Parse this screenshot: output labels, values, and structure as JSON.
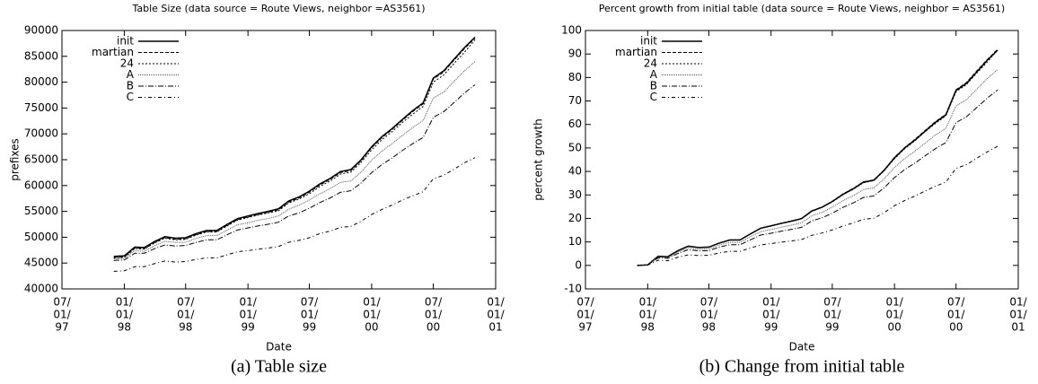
{
  "chart_data": [
    {
      "type": "line",
      "title": "Table Size (data source = Route Views, neighbor =AS3561)",
      "xlabel": "Date",
      "ylabel": "prefixes",
      "caption": "(a) Table size",
      "legend": "upper left",
      "x": [
        "1997-12-01",
        "1998-01-01",
        "1998-02-01",
        "1998-03-01",
        "1998-04-01",
        "1998-05-01",
        "1998-06-01",
        "1998-07-01",
        "1998-08-01",
        "1998-09-01",
        "1998-10-01",
        "1998-11-01",
        "1998-12-01",
        "1999-01-01",
        "1999-02-01",
        "1999-03-01",
        "1999-04-01",
        "1999-05-01",
        "1999-06-01",
        "1999-07-01",
        "1999-08-01",
        "1999-09-01",
        "1999-10-01",
        "1999-11-01",
        "1999-12-01",
        "2000-01-01",
        "2000-02-01",
        "2000-03-01",
        "2000-04-01",
        "2000-05-01",
        "2000-06-01",
        "2000-07-01",
        "2000-08-01",
        "2000-09-01",
        "2000-10-01",
        "2000-11-01"
      ],
      "xlim": [
        "1997-07-01",
        "2001-01-01"
      ],
      "xticks": [
        {
          "value": "1997-07-01",
          "label": [
            "07/",
            "01/",
            "97"
          ]
        },
        {
          "value": "1998-01-01",
          "label": [
            "01/",
            "01/",
            "98"
          ]
        },
        {
          "value": "1998-07-01",
          "label": [
            "07/",
            "01/",
            "98"
          ]
        },
        {
          "value": "1999-01-01",
          "label": [
            "01/",
            "01/",
            "99"
          ]
        },
        {
          "value": "1999-07-01",
          "label": [
            "07/",
            "01/",
            "99"
          ]
        },
        {
          "value": "2000-01-01",
          "label": [
            "01/",
            "01/",
            "00"
          ]
        },
        {
          "value": "2000-07-01",
          "label": [
            "07/",
            "01/",
            "00"
          ]
        },
        {
          "value": "2001-01-01",
          "label": [
            "01/",
            "01/",
            "01"
          ]
        }
      ],
      "ylim": [
        40000,
        90000
      ],
      "yticks": [
        40000,
        45000,
        50000,
        55000,
        60000,
        65000,
        70000,
        75000,
        80000,
        85000,
        90000
      ],
      "series": [
        {
          "name": "init",
          "color": "#000000",
          "dash": "none",
          "values": [
            46300,
            46400,
            48100,
            48000,
            49200,
            50100,
            49800,
            49900,
            50700,
            51300,
            51300,
            52500,
            53600,
            54100,
            54600,
            55000,
            55500,
            57000,
            57800,
            58900,
            60300,
            61400,
            62700,
            63100,
            65000,
            67500,
            69500,
            71000,
            72800,
            74500,
            76000,
            80800,
            82200,
            84500,
            86700,
            88700
          ]
        },
        {
          "name": "martian",
          "color": "#000000",
          "dash": "4,2",
          "values": [
            46100,
            46200,
            47900,
            47800,
            49000,
            49900,
            49600,
            49700,
            50500,
            51100,
            51100,
            52300,
            53400,
            53900,
            54400,
            54800,
            55300,
            56800,
            57600,
            58700,
            60100,
            61200,
            62500,
            62900,
            64800,
            67300,
            69300,
            70800,
            72600,
            74300,
            75800,
            80600,
            82000,
            84300,
            86500,
            88500
          ]
        },
        {
          "name": "24",
          "color": "#000000",
          "dash": "2,2",
          "values": [
            46000,
            46100,
            47800,
            47700,
            48900,
            49800,
            49500,
            49600,
            50400,
            51000,
            51000,
            52200,
            53300,
            53800,
            54300,
            54700,
            55100,
            56600,
            57400,
            58400,
            59800,
            60900,
            62200,
            62600,
            64500,
            66900,
            68900,
            70400,
            72200,
            73800,
            75300,
            80000,
            81400,
            83700,
            85800,
            88200
          ]
        },
        {
          "name": "A",
          "color": "#555555",
          "dash": "1,1",
          "values": [
            45800,
            45900,
            47400,
            47300,
            48400,
            49200,
            49000,
            49000,
            49800,
            50300,
            50300,
            51400,
            52400,
            52800,
            53300,
            53600,
            54100,
            55400,
            56200,
            57200,
            58400,
            59400,
            60600,
            60900,
            62600,
            64900,
            66700,
            68100,
            69700,
            71200,
            72600,
            76900,
            78100,
            80200,
            82200,
            84000
          ]
        },
        {
          "name": "B",
          "color": "#000000",
          "dash": "6,2,1,2",
          "values": [
            45500,
            45600,
            46900,
            46900,
            47800,
            48500,
            48300,
            48400,
            49000,
            49500,
            49500,
            50500,
            51400,
            51800,
            52200,
            52500,
            52900,
            54100,
            54700,
            55600,
            56700,
            57600,
            58700,
            59000,
            60500,
            62500,
            64100,
            65300,
            66800,
            68100,
            69300,
            73200,
            74300,
            76100,
            77900,
            79500
          ]
        },
        {
          "name": "C",
          "color": "#000000",
          "dash": "4,3,1,3",
          "values": [
            43400,
            43500,
            44300,
            44300,
            44900,
            45400,
            45200,
            45300,
            45700,
            46000,
            46000,
            46600,
            47200,
            47400,
            47700,
            47900,
            48200,
            49000,
            49400,
            49900,
            50700,
            51200,
            51900,
            52100,
            53100,
            54400,
            55400,
            56200,
            57200,
            58000,
            58800,
            61300,
            62000,
            63200,
            64400,
            65400
          ]
        }
      ]
    },
    {
      "type": "line",
      "title": "Percent growth from initial table (data source = Route Views, neighbor = AS3561)",
      "xlabel": "Date",
      "ylabel": "percent growth",
      "caption": "(b) Change from initial table",
      "legend": "upper left",
      "x": [
        "1997-12-01",
        "1998-01-01",
        "1998-02-01",
        "1998-03-01",
        "1998-04-01",
        "1998-05-01",
        "1998-06-01",
        "1998-07-01",
        "1998-08-01",
        "1998-09-01",
        "1998-10-01",
        "1998-11-01",
        "1998-12-01",
        "1999-01-01",
        "1999-02-01",
        "1999-03-01",
        "1999-04-01",
        "1999-05-01",
        "1999-06-01",
        "1999-07-01",
        "1999-08-01",
        "1999-09-01",
        "1999-10-01",
        "1999-11-01",
        "1999-12-01",
        "2000-01-01",
        "2000-02-01",
        "2000-03-01",
        "2000-04-01",
        "2000-05-01",
        "2000-06-01",
        "2000-07-01",
        "2000-08-01",
        "2000-09-01",
        "2000-10-01",
        "2000-11-01"
      ],
      "xlim": [
        "1997-07-01",
        "2001-01-01"
      ],
      "xticks": [
        {
          "value": "1997-07-01",
          "label": [
            "07/",
            "01/",
            "97"
          ]
        },
        {
          "value": "1998-01-01",
          "label": [
            "01/",
            "01/",
            "98"
          ]
        },
        {
          "value": "1998-07-01",
          "label": [
            "07/",
            "01/",
            "98"
          ]
        },
        {
          "value": "1999-01-01",
          "label": [
            "01/",
            "01/",
            "99"
          ]
        },
        {
          "value": "1999-07-01",
          "label": [
            "07/",
            "01/",
            "99"
          ]
        },
        {
          "value": "2000-01-01",
          "label": [
            "01/",
            "01/",
            "00"
          ]
        },
        {
          "value": "2000-07-01",
          "label": [
            "07/",
            "01/",
            "00"
          ]
        },
        {
          "value": "2001-01-01",
          "label": [
            "01/",
            "01/",
            "01"
          ]
        }
      ],
      "ylim": [
        -10,
        100
      ],
      "yticks": [
        -10,
        0,
        10,
        20,
        30,
        40,
        50,
        60,
        70,
        80,
        90,
        100
      ],
      "series": [
        {
          "name": "init",
          "color": "#000000",
          "dash": "none",
          "values": [
            0,
            0.2,
            3.9,
            3.7,
            6.3,
            8.2,
            7.6,
            7.8,
            9.5,
            10.8,
            10.8,
            13.4,
            15.8,
            16.8,
            17.9,
            18.8,
            19.9,
            23.1,
            24.8,
            27.2,
            30.2,
            32.6,
            35.4,
            36.3,
            40.4,
            45.8,
            50.1,
            53.3,
            57.2,
            60.9,
            64.1,
            74.5,
            77.5,
            82.5,
            87.3,
            91.6
          ]
        },
        {
          "name": "martian",
          "color": "#000000",
          "dash": "4,2",
          "values": [
            0,
            0.2,
            3.9,
            3.7,
            6.3,
            8.2,
            7.6,
            7.8,
            9.5,
            10.8,
            10.8,
            13.4,
            15.8,
            16.9,
            18.0,
            18.9,
            20.0,
            23.2,
            24.9,
            27.3,
            30.4,
            32.8,
            35.6,
            36.4,
            40.6,
            46.0,
            50.3,
            53.6,
            57.5,
            61.2,
            64.4,
            74.8,
            77.9,
            82.9,
            87.6,
            92.0
          ]
        },
        {
          "name": "24",
          "color": "#000000",
          "dash": "2,2",
          "values": [
            0,
            0.2,
            3.9,
            3.7,
            6.3,
            8.3,
            7.6,
            7.8,
            9.6,
            10.9,
            10.9,
            13.5,
            15.9,
            17.0,
            18.0,
            18.9,
            19.8,
            23.0,
            24.8,
            27.0,
            30.0,
            32.4,
            35.2,
            36.1,
            40.2,
            45.4,
            49.8,
            53.0,
            57.0,
            60.4,
            63.7,
            73.9,
            77.0,
            82.0,
            86.5,
            91.7
          ]
        },
        {
          "name": "A",
          "color": "#555555",
          "dash": "1,1",
          "values": [
            0,
            0.2,
            3.5,
            3.3,
            5.7,
            7.5,
            6.9,
            7.1,
            8.7,
            9.8,
            9.8,
            12.2,
            14.4,
            15.3,
            16.3,
            17.1,
            18.1,
            21.1,
            22.6,
            24.8,
            27.5,
            29.7,
            32.3,
            33.0,
            36.8,
            41.7,
            45.6,
            48.6,
            52.1,
            55.5,
            58.4,
            67.9,
            70.6,
            75.1,
            79.5,
            83.4
          ]
        },
        {
          "name": "B",
          "color": "#000000",
          "dash": "6,2,1,2",
          "values": [
            0,
            0.2,
            3.2,
            3.0,
            5.1,
            6.7,
            6.2,
            6.3,
            7.8,
            8.8,
            8.8,
            10.9,
            12.9,
            13.7,
            14.6,
            15.3,
            16.2,
            18.9,
            20.3,
            22.2,
            24.7,
            26.6,
            28.9,
            29.6,
            33.0,
            37.4,
            40.9,
            43.5,
            46.7,
            49.7,
            52.3,
            60.8,
            63.3,
            67.3,
            71.2,
            74.7
          ]
        },
        {
          "name": "C",
          "color": "#000000",
          "dash": "4,3,1,3",
          "values": [
            0,
            0.1,
            2.2,
            2.0,
            3.5,
            4.5,
            4.2,
            4.3,
            5.3,
            6.0,
            6.0,
            7.4,
            8.7,
            9.3,
            9.9,
            10.4,
            11.0,
            12.8,
            13.8,
            15.1,
            16.7,
            18.1,
            19.6,
            20.1,
            22.4,
            25.4,
            27.7,
            29.5,
            31.7,
            33.7,
            35.5,
            41.3,
            42.9,
            45.7,
            48.3,
            50.7
          ]
        }
      ]
    }
  ]
}
